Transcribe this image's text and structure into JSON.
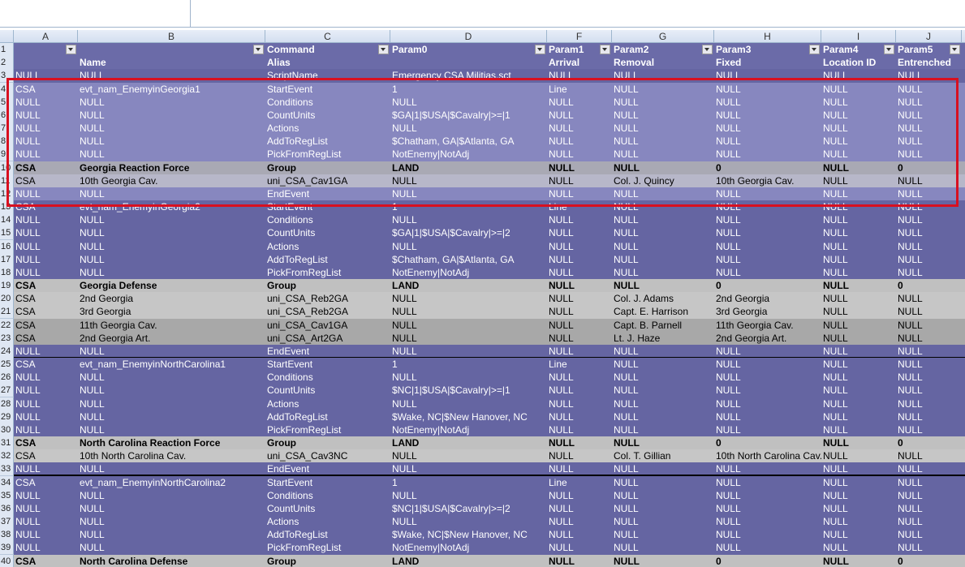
{
  "columns": [
    "A",
    "B",
    "C",
    "D",
    "F",
    "G",
    "H",
    "I",
    "J"
  ],
  "rows": [
    {
      "number": 1,
      "style": "header",
      "cells": [
        null,
        null,
        "Command",
        "Param0",
        "Param1",
        "Param2",
        "Param3",
        "Param4",
        "Param5"
      ]
    },
    {
      "number": 2,
      "style": "header",
      "cells": [
        null,
        "Name",
        "Alias",
        null,
        "Arrival",
        "Removal",
        "Fixed",
        "Location ID",
        "Entrenched"
      ]
    },
    {
      "number": 3,
      "style": "event",
      "cells": [
        "NULL",
        "NULL",
        "ScriptName",
        "Emergency CSA Militias.sct",
        "NULL",
        "NULL",
        "NULL",
        "NULL",
        "NULL"
      ]
    },
    {
      "number": 4,
      "style": "event",
      "selected": true,
      "cells": [
        "CSA",
        "evt_nam_EnemyinGeorgia1",
        "StartEvent",
        "1",
        "Line",
        "NULL",
        "NULL",
        "NULL",
        "NULL"
      ]
    },
    {
      "number": 5,
      "style": "event",
      "selected": true,
      "cells": [
        "NULL",
        "NULL",
        "Conditions",
        "NULL",
        "NULL",
        "NULL",
        "NULL",
        "NULL",
        "NULL"
      ]
    },
    {
      "number": 6,
      "style": "event",
      "selected": true,
      "cells": [
        "NULL",
        "NULL",
        "CountUnits",
        "$GA|1|$USA|$Cavalry|>=|1",
        "NULL",
        "NULL",
        "NULL",
        "NULL",
        "NULL"
      ]
    },
    {
      "number": 7,
      "style": "event",
      "selected": true,
      "cells": [
        "NULL",
        "NULL",
        "Actions",
        "NULL",
        "NULL",
        "NULL",
        "NULL",
        "NULL",
        "NULL"
      ]
    },
    {
      "number": 8,
      "style": "event",
      "selected": true,
      "cells": [
        "NULL",
        "NULL",
        "AddToRegList",
        "$Chatham, GA|$Atlanta, GA",
        "NULL",
        "NULL",
        "NULL",
        "NULL",
        "NULL"
      ]
    },
    {
      "number": 9,
      "style": "event",
      "selected": true,
      "cells": [
        "NULL",
        "NULL",
        "PickFromRegList",
        "NotEnemy|NotAdj",
        "NULL",
        "NULL",
        "NULL",
        "NULL",
        "NULL"
      ]
    },
    {
      "number": 10,
      "style": "group",
      "selected": true,
      "cells": [
        "CSA",
        "Georgia Reaction Force",
        "Group",
        "LAND",
        "NULL",
        "NULL",
        "0",
        "NULL",
        "0"
      ]
    },
    {
      "number": 11,
      "style": "unit",
      "selected": true,
      "cells": [
        "CSA",
        "10th Georgia Cav.",
        "uni_CSA_Cav1GA",
        "NULL",
        "NULL",
        "Col. J. Quincy",
        "10th Georgia Cav.",
        "NULL",
        "NULL"
      ]
    },
    {
      "number": 12,
      "style": "event",
      "selected": true,
      "cells": [
        "NULL",
        "NULL",
        "EndEvent",
        "NULL",
        "NULL",
        "NULL",
        "NULL",
        "NULL",
        "NULL"
      ]
    },
    {
      "number": 13,
      "style": "event",
      "cells": [
        "CSA",
        "evt_nam_EnemyinGeorgia2",
        "StartEvent",
        "1",
        "Line",
        "NULL",
        "NULL",
        "NULL",
        "NULL"
      ]
    },
    {
      "number": 14,
      "style": "event",
      "cells": [
        "NULL",
        "NULL",
        "Conditions",
        "NULL",
        "NULL",
        "NULL",
        "NULL",
        "NULL",
        "NULL"
      ]
    },
    {
      "number": 15,
      "style": "event",
      "cells": [
        "NULL",
        "NULL",
        "CountUnits",
        "$GA|1|$USA|$Cavalry|>=|2",
        "NULL",
        "NULL",
        "NULL",
        "NULL",
        "NULL"
      ]
    },
    {
      "number": 16,
      "style": "event",
      "cells": [
        "NULL",
        "NULL",
        "Actions",
        "NULL",
        "NULL",
        "NULL",
        "NULL",
        "NULL",
        "NULL"
      ]
    },
    {
      "number": 17,
      "style": "event",
      "cells": [
        "NULL",
        "NULL",
        "AddToRegList",
        "$Chatham, GA|$Atlanta, GA",
        "NULL",
        "NULL",
        "NULL",
        "NULL",
        "NULL"
      ]
    },
    {
      "number": 18,
      "style": "event",
      "cells": [
        "NULL",
        "NULL",
        "PickFromRegList",
        "NotEnemy|NotAdj",
        "NULL",
        "NULL",
        "NULL",
        "NULL",
        "NULL"
      ]
    },
    {
      "number": 19,
      "style": "group",
      "cells": [
        "CSA",
        "Georgia Defense",
        "Group",
        "LAND",
        "NULL",
        "NULL",
        "0",
        "NULL",
        "0"
      ]
    },
    {
      "number": 20,
      "style": "unit",
      "cells": [
        "CSA",
        "2nd Georgia",
        "uni_CSA_Reb2GA",
        "NULL",
        "NULL",
        "Col. J. Adams",
        "2nd Georgia",
        "NULL",
        "NULL"
      ]
    },
    {
      "number": 21,
      "style": "unit",
      "cells": [
        "CSA",
        "3rd Georgia",
        "uni_CSA_Reb2GA",
        "NULL",
        "NULL",
        "Capt. E. Harrison",
        "3rd Georgia",
        "NULL",
        "NULL"
      ]
    },
    {
      "number": 22,
      "style": "unit-dark",
      "cells": [
        "CSA",
        "11th Georgia Cav.",
        "uni_CSA_Cav1GA",
        "NULL",
        "NULL",
        "Capt. B. Parnell",
        "11th Georgia Cav.",
        "NULL",
        "NULL"
      ]
    },
    {
      "number": 23,
      "style": "unit-dark",
      "cells": [
        "CSA",
        "2nd Georgia Art.",
        "uni_CSA_Art2GA",
        "NULL",
        "NULL",
        "Lt. J. Haze",
        "2nd Georgia Art.",
        "NULL",
        "NULL"
      ]
    },
    {
      "number": 24,
      "style": "event",
      "end": true,
      "cells": [
        "NULL",
        "NULL",
        "EndEvent",
        "NULL",
        "NULL",
        "NULL",
        "NULL",
        "NULL",
        "NULL"
      ]
    },
    {
      "number": 25,
      "style": "event",
      "cells": [
        "CSA",
        "evt_nam_EnemyinNorthCarolina1",
        "StartEvent",
        "1",
        "Line",
        "NULL",
        "NULL",
        "NULL",
        "NULL"
      ]
    },
    {
      "number": 26,
      "style": "event",
      "cells": [
        "NULL",
        "NULL",
        "Conditions",
        "NULL",
        "NULL",
        "NULL",
        "NULL",
        "NULL",
        "NULL"
      ]
    },
    {
      "number": 27,
      "style": "event",
      "cells": [
        "NULL",
        "NULL",
        "CountUnits",
        "$NC|1|$USA|$Cavalry|>=|1",
        "NULL",
        "NULL",
        "NULL",
        "NULL",
        "NULL"
      ]
    },
    {
      "number": 28,
      "style": "event",
      "cells": [
        "NULL",
        "NULL",
        "Actions",
        "NULL",
        "NULL",
        "NULL",
        "NULL",
        "NULL",
        "NULL"
      ]
    },
    {
      "number": 29,
      "style": "event",
      "cells": [
        "NULL",
        "NULL",
        "AddToRegList",
        "$Wake, NC|$New Hanover, NC",
        "NULL",
        "NULL",
        "NULL",
        "NULL",
        "NULL"
      ]
    },
    {
      "number": 30,
      "style": "event",
      "cells": [
        "NULL",
        "NULL",
        "PickFromRegList",
        "NotEnemy|NotAdj",
        "NULL",
        "NULL",
        "NULL",
        "NULL",
        "NULL"
      ]
    },
    {
      "number": 31,
      "style": "group",
      "cells": [
        "CSA",
        "North Carolina Reaction Force",
        "Group",
        "LAND",
        "NULL",
        "NULL",
        "0",
        "NULL",
        "0"
      ]
    },
    {
      "number": 32,
      "style": "unit",
      "cells": [
        "CSA",
        "10th North Carolina Cav.",
        "uni_CSA_Cav3NC",
        "NULL",
        "NULL",
        "Col. T. Gillian",
        "10th North Carolina Cav.",
        "NULL",
        "NULL"
      ]
    },
    {
      "number": 33,
      "style": "event",
      "end": true,
      "cells": [
        "NULL",
        "NULL",
        "EndEvent",
        "NULL",
        "NULL",
        "NULL",
        "NULL",
        "NULL",
        "NULL"
      ]
    },
    {
      "number": 34,
      "style": "event",
      "cells": [
        "CSA",
        "evt_nam_EnemyinNorthCarolina2",
        "StartEvent",
        "1",
        "Line",
        "NULL",
        "NULL",
        "NULL",
        "NULL"
      ]
    },
    {
      "number": 35,
      "style": "event",
      "cells": [
        "NULL",
        "NULL",
        "Conditions",
        "NULL",
        "NULL",
        "NULL",
        "NULL",
        "NULL",
        "NULL"
      ]
    },
    {
      "number": 36,
      "style": "event",
      "cells": [
        "NULL",
        "NULL",
        "CountUnits",
        "$NC|1|$USA|$Cavalry|>=|2",
        "NULL",
        "NULL",
        "NULL",
        "NULL",
        "NULL"
      ]
    },
    {
      "number": 37,
      "style": "event",
      "cells": [
        "NULL",
        "NULL",
        "Actions",
        "NULL",
        "NULL",
        "NULL",
        "NULL",
        "NULL",
        "NULL"
      ]
    },
    {
      "number": 38,
      "style": "event",
      "cells": [
        "NULL",
        "NULL",
        "AddToRegList",
        "$Wake, NC|$New Hanover, NC",
        "NULL",
        "NULL",
        "NULL",
        "NULL",
        "NULL"
      ]
    },
    {
      "number": 39,
      "style": "event",
      "cells": [
        "NULL",
        "NULL",
        "PickFromRegList",
        "NotEnemy|NotAdj",
        "NULL",
        "NULL",
        "NULL",
        "NULL",
        "NULL"
      ]
    },
    {
      "number": 40,
      "style": "group",
      "cells": [
        "CSA",
        "North Carolina Defense",
        "Group",
        "LAND",
        "NULL",
        "NULL",
        "0",
        "NULL",
        "0"
      ]
    }
  ]
}
